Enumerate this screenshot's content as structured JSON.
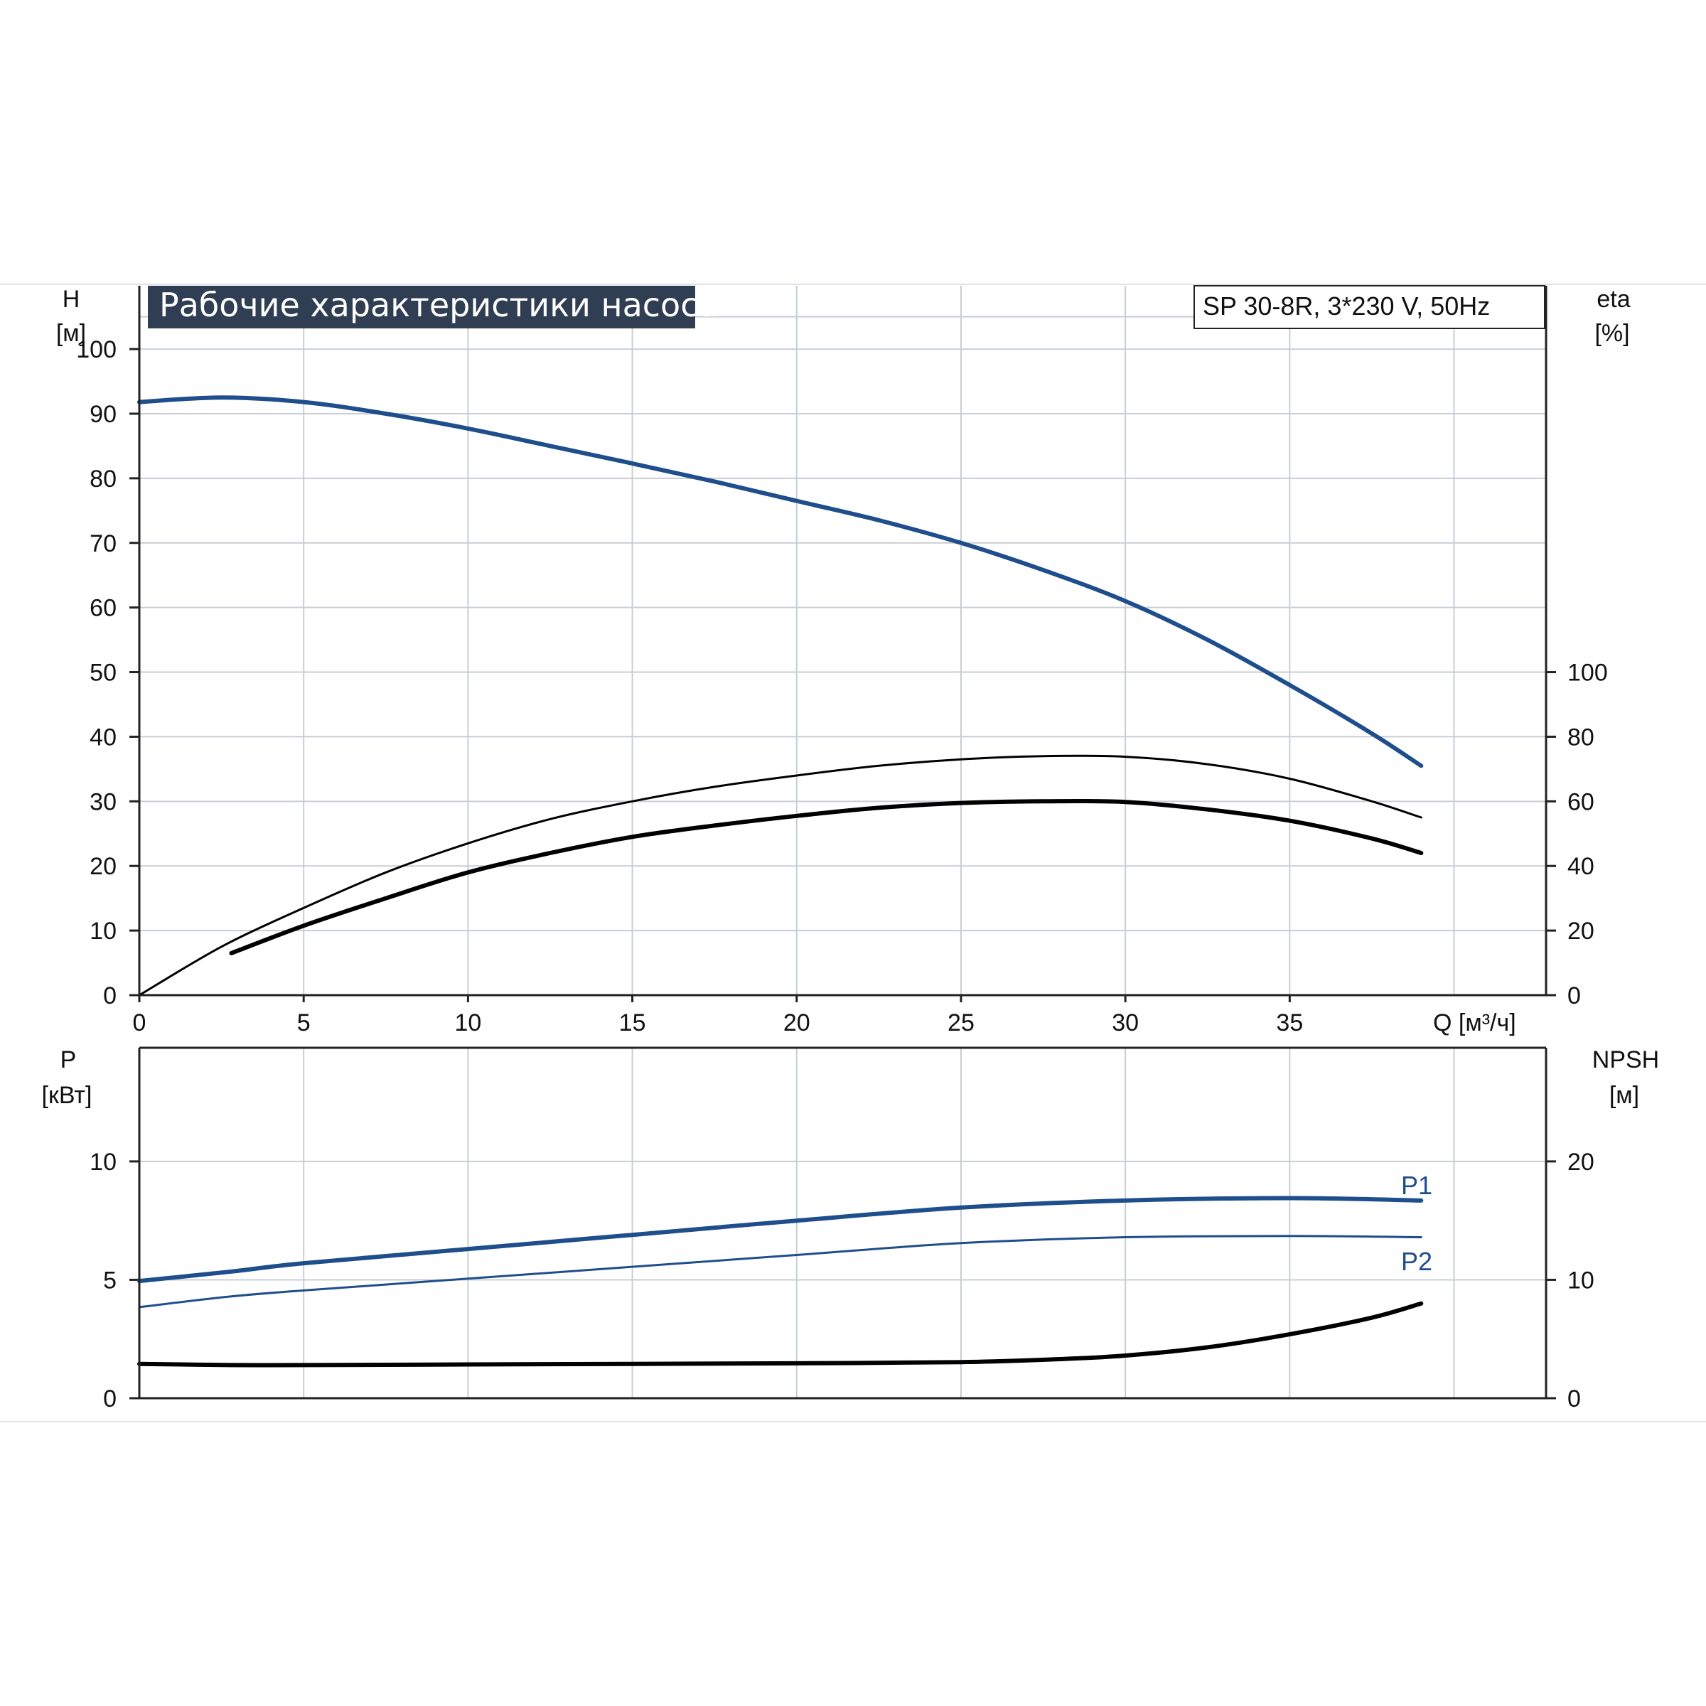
{
  "colors": {
    "blue": "#1f4e8c",
    "black": "#000000",
    "grid": "#c9ced4",
    "title_bg": "#2f3e52",
    "axis": "#222222"
  },
  "chart_data": [
    {
      "type": "line",
      "title": "Рабочие характеристики насоса",
      "model_label": "SP 30-8R, 3*230 V, 50Hz",
      "xlabel": "Q [м³/ч]",
      "x_unit": "м³/ч",
      "ylabel": "H",
      "y_unit": "[м]",
      "y2label": "eta",
      "y2_unit": "[%]",
      "xlim": [
        0,
        42.8
      ],
      "ylim": [
        0,
        109.8
      ],
      "y2lim": [
        0,
        219.6
      ],
      "xticks": [
        "0",
        "5",
        "10",
        "15",
        "20",
        "25",
        "30",
        "35"
      ],
      "yticks": [
        "0",
        "10",
        "20",
        "30",
        "40",
        "50",
        "60",
        "70",
        "80",
        "90",
        "100"
      ],
      "y2ticks": [
        "0",
        "20",
        "40",
        "60",
        "80",
        "100"
      ],
      "grid": true,
      "series": [
        {
          "axis": "left",
          "color": "#1f4e8c",
          "x": [
            0,
            2.5,
            5,
            7.5,
            10,
            12.5,
            15,
            17.5,
            20,
            22.5,
            25,
            27.5,
            30,
            32.5,
            35,
            37.5,
            39
          ],
          "y": [
            91.8,
            92.5,
            91.8,
            90.0,
            87.7,
            85.0,
            82.3,
            79.5,
            76.5,
            73.5,
            70.0,
            65.8,
            61.0,
            55.0,
            48.0,
            40.5,
            35.5
          ]
        },
        {
          "axis": "right",
          "color": "#000000",
          "x": [
            0,
            2.5,
            5,
            7.5,
            10,
            12.5,
            15,
            17.5,
            20,
            22.5,
            25,
            27.5,
            30,
            32.5,
            35,
            37.5,
            39
          ],
          "y": [
            0,
            15,
            27,
            38,
            47,
            54.5,
            60,
            64.5,
            68,
            71,
            73,
            74,
            73.8,
            71.5,
            67,
            60,
            55
          ]
        },
        {
          "axis": "right",
          "color": "#000000",
          "x": [
            2.8,
            5,
            7.5,
            10,
            12.5,
            15,
            17.5,
            20,
            22.5,
            25,
            27.5,
            30,
            32.5,
            35,
            37.5,
            39
          ],
          "y": [
            13,
            21.5,
            30,
            38,
            44,
            49,
            52.5,
            55.5,
            58,
            59.5,
            60,
            59.8,
            57.5,
            54,
            48.5,
            44
          ]
        }
      ]
    },
    {
      "type": "line",
      "xlabel": "",
      "ylabel": "P",
      "y_unit": "[кВт]",
      "y2label": "NPSH",
      "y2_unit": "[м]",
      "xlim": [
        0,
        42.8
      ],
      "ylim": [
        0,
        14.8
      ],
      "y2lim": [
        0,
        29.6
      ],
      "yticks": [
        "0",
        "5",
        "10"
      ],
      "y2ticks": [
        "0",
        "10",
        "20"
      ],
      "grid": true,
      "series": [
        {
          "name": "P1",
          "axis": "left",
          "color": "#1f4e8c",
          "x": [
            0,
            2.8,
            5,
            10,
            15,
            20,
            25,
            30,
            35,
            39
          ],
          "y": [
            4.95,
            5.35,
            5.7,
            6.3,
            6.9,
            7.5,
            8.05,
            8.35,
            8.45,
            8.35
          ]
        },
        {
          "name": "P2",
          "axis": "left",
          "color": "#1f4e8c",
          "x": [
            0,
            2.8,
            5,
            10,
            15,
            20,
            25,
            30,
            35,
            39
          ],
          "y": [
            3.85,
            4.3,
            4.55,
            5.05,
            5.55,
            6.05,
            6.55,
            6.8,
            6.85,
            6.8
          ]
        },
        {
          "axis": "right",
          "color": "#000000",
          "x": [
            0,
            2.8,
            5,
            10,
            15,
            20,
            25,
            28,
            30,
            32.5,
            35,
            37.5,
            39
          ],
          "y": [
            2.9,
            2.8,
            2.8,
            2.85,
            2.9,
            2.95,
            3.05,
            3.3,
            3.6,
            4.3,
            5.4,
            6.8,
            8.0
          ]
        }
      ]
    }
  ]
}
